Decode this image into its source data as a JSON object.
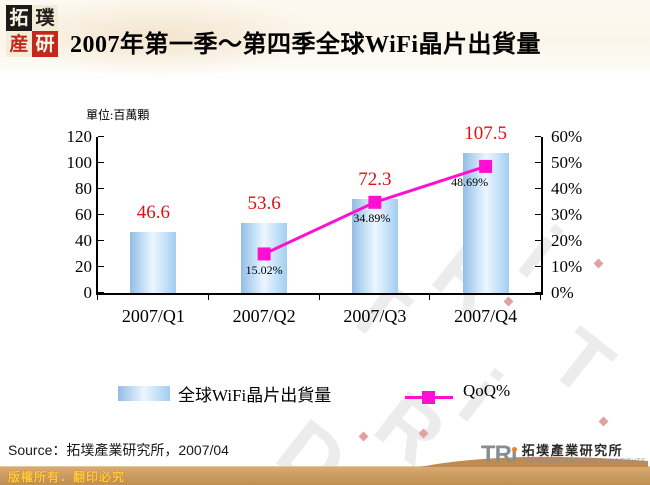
{
  "header": {
    "logo": {
      "chars": [
        "拓",
        "璞",
        "産",
        "研"
      ]
    },
    "title": "2007年第一季～第四季全球WiFi晶片出貨量"
  },
  "chart_data": {
    "type": "bar",
    "subtype": "combo-bar-line",
    "title": "2007年第一季～第四季全球WiFi晶片出貨量",
    "unit_label": "單位:百萬顆",
    "categories": [
      "2007/Q1",
      "2007/Q2",
      "2007/Q3",
      "2007/Q4"
    ],
    "series": [
      {
        "name": "全球WiFi晶片出貨量",
        "type": "bar",
        "axis": "left",
        "values": [
          46.6,
          53.6,
          72.3,
          107.5
        ],
        "labels": [
          "46.6",
          "53.6",
          "72.3",
          "107.5"
        ]
      },
      {
        "name": "QoQ%",
        "type": "line",
        "axis": "right",
        "values": [
          null,
          15.02,
          34.89,
          48.69
        ],
        "labels": [
          null,
          "15.02%",
          "34.89%",
          "48.69%"
        ]
      }
    ],
    "left_axis": {
      "ticks": [
        0,
        20,
        40,
        60,
        80,
        100,
        120
      ],
      "lim": [
        0,
        120
      ]
    },
    "right_axis": {
      "ticks": [
        0,
        10,
        20,
        30,
        40,
        50,
        60
      ],
      "suffix": "%",
      "lim": [
        0,
        60
      ]
    },
    "grid": false,
    "legend_position": "bottom"
  },
  "source": {
    "text": "Source：拓墣產業研究所，2007/04"
  },
  "footer": {
    "copyright": "版權所有．翻印必究",
    "tri_latin": "TR",
    "tri_cn": "拓墣產業研究所",
    "tri_en": "TOPOLOGY RESEARCH INSTITUTE"
  },
  "watermark": {
    "letters": [
      "T",
      "R",
      "i",
      "R",
      "i",
      "T",
      "D"
    ]
  },
  "colors": {
    "bar_fill_light": "#ecf6fe",
    "bar_fill_dark": "#93bde4",
    "value_label_red": "#dd1111",
    "qoq_line_magenta": "#ff10d0",
    "copyright_bar_tan": "#c8995e",
    "copyright_text_yellow": "#ffc83d",
    "seal_red": "#c4281c",
    "tri_gray": "#868d93",
    "tri_dot_orange": "#e8831e"
  }
}
